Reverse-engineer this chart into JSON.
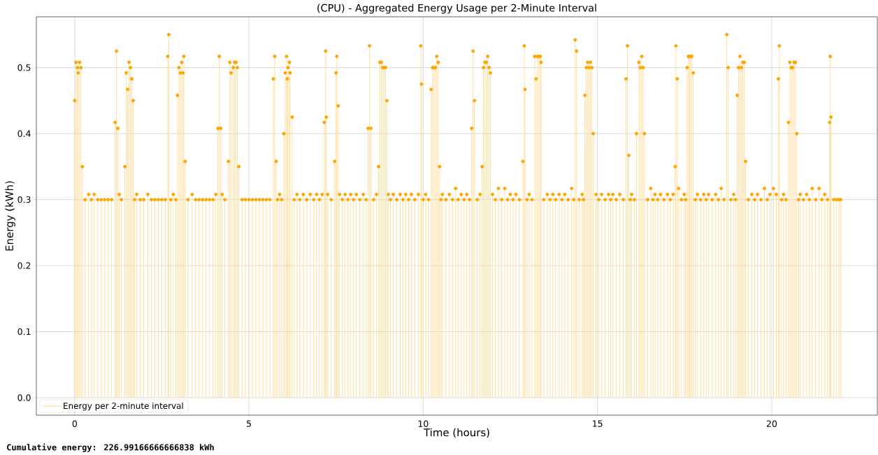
{
  "chart_data": {
    "type": "lollipop",
    "title": "(CPU) - Aggregated Energy Usage per 2-Minute Interval",
    "xlabel": "Time (hours)",
    "ylabel": "Energy (kWh)",
    "annotations": [
      "Cumulative energy: 226.99166666666838 kWh"
    ],
    "x": [
      0,
      0.04,
      0.08,
      0.1,
      0.14,
      0.18,
      0.22,
      0.3,
      0.4,
      0.48,
      0.56,
      0.66,
      0.76,
      0.86,
      0.96,
      1.06,
      1.16,
      1.2,
      1.24,
      1.28,
      1.34,
      1.44,
      1.48,
      1.52,
      1.56,
      1.6,
      1.64,
      1.68,
      1.72,
      1.78,
      1.88,
      1.98,
      2.1,
      2.2,
      2.3,
      2.4,
      2.5,
      2.6,
      2.67,
      2.7,
      2.76,
      2.83,
      2.9,
      2.95,
      2.99,
      3.03,
      3.07,
      3.11,
      3.13,
      3.17,
      3.25,
      3.37,
      3.47,
      3.57,
      3.67,
      3.77,
      3.87,
      3.97,
      4.05,
      4.11,
      4.15,
      4.19,
      4.23,
      4.31,
      4.41,
      4.45,
      4.49,
      4.55,
      4.59,
      4.63,
      4.67,
      4.71,
      4.8,
      4.9,
      5.0,
      5.1,
      5.2,
      5.3,
      5.4,
      5.5,
      5.6,
      5.7,
      5.74,
      5.78,
      5.82,
      5.88,
      5.94,
      6.0,
      6.04,
      6.08,
      6.1,
      6.12,
      6.16,
      6.18,
      6.24,
      6.3,
      6.38,
      6.46,
      6.56,
      6.66,
      6.76,
      6.86,
      6.94,
      7.02,
      7.1,
      7.16,
      7.2,
      7.22,
      7.26,
      7.36,
      7.46,
      7.5,
      7.52,
      7.56,
      7.6,
      7.68,
      7.76,
      7.84,
      7.92,
      8.0,
      8.08,
      8.18,
      8.28,
      8.36,
      8.42,
      8.46,
      8.5,
      8.58,
      8.66,
      8.72,
      8.76,
      8.8,
      8.84,
      8.88,
      8.92,
      8.96,
      9.0,
      9.06,
      9.14,
      9.24,
      9.34,
      9.42,
      9.5,
      9.58,
      9.66,
      9.76,
      9.86,
      9.93,
      9.95,
      10.0,
      10.07,
      10.15,
      10.23,
      10.27,
      10.31,
      10.35,
      10.39,
      10.43,
      10.47,
      10.51,
      10.55,
      10.65,
      10.75,
      10.84,
      10.93,
      11.0,
      11.09,
      11.17,
      11.25,
      11.33,
      11.39,
      11.43,
      11.47,
      11.55,
      11.63,
      11.69,
      11.73,
      11.77,
      11.81,
      11.85,
      11.89,
      11.93,
      11.99,
      12.07,
      12.16,
      12.25,
      12.34,
      12.42,
      12.5,
      12.58,
      12.66,
      12.76,
      12.86,
      12.9,
      12.92,
      12.98,
      13.04,
      13.12,
      13.2,
      13.24,
      13.28,
      13.32,
      13.36,
      13.38,
      13.46,
      13.56,
      13.64,
      13.72,
      13.8,
      13.9,
      13.98,
      14.06,
      14.16,
      14.26,
      14.32,
      14.36,
      14.4,
      14.48,
      14.56,
      14.6,
      14.64,
      14.68,
      14.72,
      14.76,
      14.8,
      14.84,
      14.88,
      14.96,
      15.04,
      15.12,
      15.22,
      15.32,
      15.38,
      15.44,
      15.54,
      15.64,
      15.74,
      15.82,
      15.86,
      15.9,
      15.94,
      15.98,
      16.06,
      16.12,
      16.19,
      16.23,
      16.27,
      16.31,
      16.35,
      16.44,
      16.53,
      16.59,
      16.65,
      16.73,
      16.81,
      16.91,
      17.01,
      17.09,
      17.17,
      17.23,
      17.25,
      17.29,
      17.33,
      17.41,
      17.49,
      17.53,
      17.57,
      17.61,
      17.64,
      17.67,
      17.71,
      17.75,
      17.81,
      17.87,
      17.96,
      18.05,
      18.12,
      18.19,
      18.29,
      18.39,
      18.47,
      18.55,
      18.63,
      18.71,
      18.75,
      18.83,
      18.91,
      18.96,
      19.01,
      19.05,
      19.09,
      19.13,
      19.17,
      19.21,
      19.25,
      19.33,
      19.43,
      19.51,
      19.59,
      19.69,
      19.79,
      19.87,
      19.95,
      20.05,
      20.13,
      20.19,
      20.22,
      20.28,
      20.34,
      20.41,
      20.48,
      20.52,
      20.56,
      20.6,
      20.64,
      20.68,
      20.72,
      20.77,
      20.82,
      20.91,
      21.0,
      21.08,
      21.16,
      21.26,
      21.36,
      21.44,
      21.52,
      21.6,
      21.66,
      21.68,
      21.7,
      21.78,
      21.86,
      21.93,
      21.98
    ],
    "series": [
      {
        "name": "Energy per 2-minute interval",
        "color": "#ffa500",
        "values": [
          0.45,
          0.508,
          0.5,
          0.492,
          0.508,
          0.5,
          0.35,
          0.3,
          0.308,
          0.3,
          0.308,
          0.3,
          0.3,
          0.3,
          0.3,
          0.3,
          0.417,
          0.525,
          0.408,
          0.308,
          0.3,
          0.35,
          0.492,
          0.467,
          0.508,
          0.5,
          0.483,
          0.45,
          0.3,
          0.308,
          0.3,
          0.3,
          0.308,
          0.3,
          0.3,
          0.3,
          0.3,
          0.3,
          0.517,
          0.55,
          0.3,
          0.308,
          0.3,
          0.458,
          0.5,
          0.492,
          0.508,
          0.492,
          0.517,
          0.358,
          0.3,
          0.308,
          0.3,
          0.3,
          0.3,
          0.3,
          0.3,
          0.3,
          0.308,
          0.408,
          0.517,
          0.408,
          0.308,
          0.3,
          0.358,
          0.508,
          0.492,
          0.5,
          0.508,
          0.508,
          0.5,
          0.35,
          0.3,
          0.3,
          0.3,
          0.3,
          0.3,
          0.3,
          0.3,
          0.3,
          0.3,
          0.483,
          0.517,
          0.358,
          0.3,
          0.308,
          0.3,
          0.4,
          0.492,
          0.517,
          0.483,
          0.5,
          0.508,
          0.492,
          0.425,
          0.3,
          0.308,
          0.3,
          0.308,
          0.3,
          0.308,
          0.3,
          0.308,
          0.3,
          0.308,
          0.417,
          0.525,
          0.425,
          0.308,
          0.3,
          0.358,
          0.492,
          0.517,
          0.442,
          0.308,
          0.3,
          0.308,
          0.3,
          0.308,
          0.3,
          0.308,
          0.3,
          0.308,
          0.3,
          0.408,
          0.533,
          0.408,
          0.3,
          0.308,
          0.35,
          0.508,
          0.508,
          0.5,
          0.5,
          0.5,
          0.45,
          0.308,
          0.3,
          0.308,
          0.3,
          0.308,
          0.3,
          0.308,
          0.3,
          0.308,
          0.3,
          0.308,
          0.533,
          0.475,
          0.3,
          0.308,
          0.3,
          0.467,
          0.5,
          0.5,
          0.5,
          0.517,
          0.508,
          0.35,
          0.3,
          0.308,
          0.3,
          0.308,
          0.3,
          0.317,
          0.3,
          0.308,
          0.3,
          0.308,
          0.3,
          0.408,
          0.525,
          0.45,
          0.3,
          0.308,
          0.35,
          0.5,
          0.508,
          0.508,
          0.517,
          0.5,
          0.492,
          0.308,
          0.3,
          0.317,
          0.3,
          0.317,
          0.3,
          0.308,
          0.3,
          0.308,
          0.3,
          0.358,
          0.533,
          0.467,
          0.3,
          0.308,
          0.3,
          0.517,
          0.483,
          0.517,
          0.517,
          0.517,
          0.508,
          0.3,
          0.308,
          0.3,
          0.308,
          0.3,
          0.308,
          0.3,
          0.308,
          0.3,
          0.317,
          0.3,
          0.542,
          0.525,
          0.3,
          0.308,
          0.3,
          0.458,
          0.5,
          0.508,
          0.5,
          0.508,
          0.5,
          0.4,
          0.308,
          0.3,
          0.308,
          0.3,
          0.308,
          0.3,
          0.308,
          0.3,
          0.308,
          0.3,
          0.483,
          0.533,
          0.367,
          0.3,
          0.308,
          0.3,
          0.4,
          0.508,
          0.5,
          0.517,
          0.5,
          0.4,
          0.3,
          0.317,
          0.3,
          0.308,
          0.3,
          0.308,
          0.3,
          0.308,
          0.3,
          0.308,
          0.35,
          0.533,
          0.483,
          0.317,
          0.3,
          0.308,
          0.3,
          0.5,
          0.517,
          0.517,
          0.517,
          0.517,
          0.492,
          0.3,
          0.308,
          0.3,
          0.308,
          0.3,
          0.308,
          0.3,
          0.308,
          0.3,
          0.317,
          0.3,
          0.55,
          0.5,
          0.3,
          0.308,
          0.3,
          0.458,
          0.5,
          0.517,
          0.5,
          0.508,
          0.508,
          0.358,
          0.3,
          0.308,
          0.3,
          0.308,
          0.3,
          0.317,
          0.3,
          0.308,
          0.317,
          0.308,
          0.483,
          0.533,
          0.3,
          0.308,
          0.3,
          0.417,
          0.508,
          0.5,
          0.5,
          0.508,
          0.508,
          0.4,
          0.3,
          0.308,
          0.3,
          0.308,
          0.3,
          0.317,
          0.3,
          0.317,
          0.3,
          0.308,
          0.3,
          0.417,
          0.517,
          0.425,
          0.3,
          0.3,
          0.3,
          0.3
        ]
      }
    ],
    "xlim": [
      -1.1,
      23.03
    ],
    "ylim": [
      -0.0265,
      0.577
    ],
    "xticks": [
      0,
      5,
      10,
      15,
      20
    ],
    "yticks": [
      {
        "value": 0,
        "label": "0.0"
      },
      0.1,
      0.2,
      0.3,
      0.4,
      0.5
    ],
    "grid": true,
    "legend": "bottom left",
    "marker": "circle",
    "line_style": "solid"
  }
}
